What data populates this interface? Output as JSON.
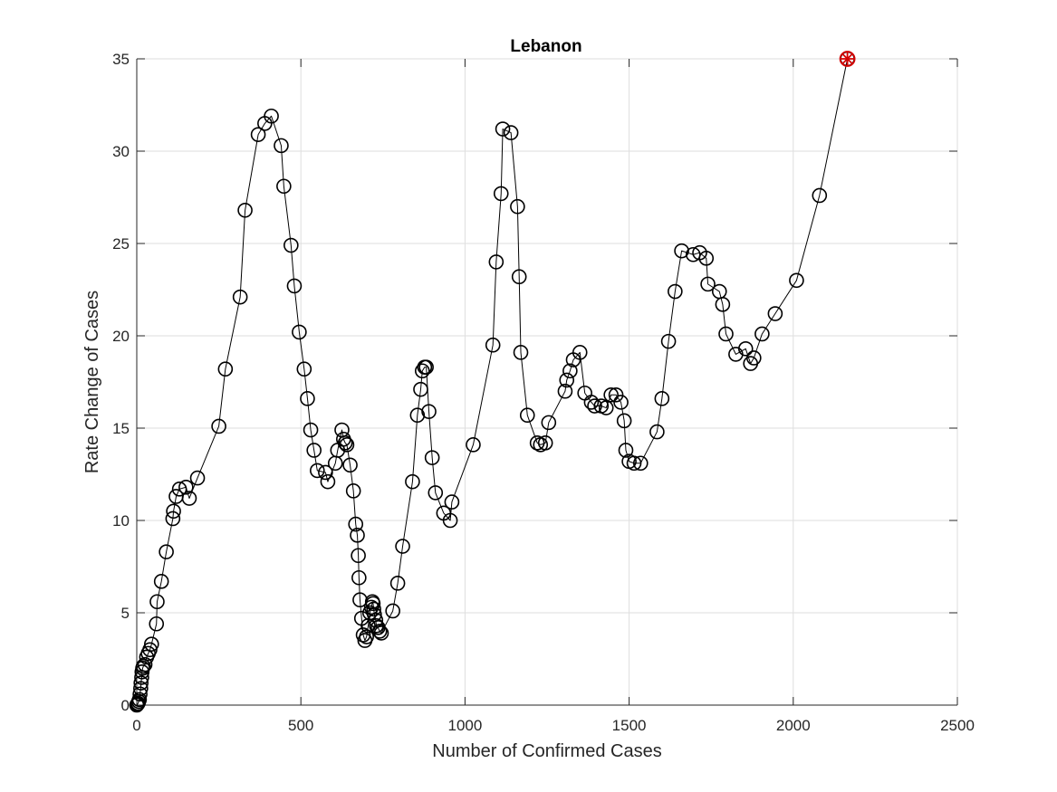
{
  "chart_data": {
    "type": "line",
    "title": "Lebanon",
    "xlabel": "Number of Confirmed Cases",
    "ylabel": "Rate Change of Cases",
    "xlim": [
      0,
      2500
    ],
    "ylim": [
      0,
      35
    ],
    "xticks": [
      "0",
      "500",
      "1000",
      "1500",
      "2000",
      "2500"
    ],
    "yticks": [
      "0",
      "5",
      "10",
      "15",
      "20",
      "25",
      "30",
      "35"
    ],
    "grid": true,
    "series": [
      {
        "line_color": "#000000",
        "marker": "circle",
        "x": [
          0,
          2,
          4,
          6,
          8,
          10,
          12,
          13,
          15,
          16,
          18,
          20,
          25,
          30,
          35,
          40,
          45,
          60,
          62,
          75,
          90,
          110,
          112,
          120,
          130,
          150,
          160,
          185,
          250,
          270,
          315,
          330,
          370,
          390,
          410,
          440,
          448,
          470,
          480,
          495,
          510,
          520,
          530,
          540,
          550,
          575,
          582,
          605,
          612,
          625,
          630,
          635,
          640,
          650,
          660,
          667,
          672,
          675,
          677,
          680,
          685,
          690,
          695,
          700,
          705,
          710,
          715,
          718,
          720,
          722,
          724,
          728,
          730,
          735,
          740,
          745,
          780,
          795,
          810,
          840,
          855,
          865,
          870,
          877,
          882,
          890,
          900,
          910,
          935,
          955,
          960,
          1025,
          1085,
          1095,
          1110,
          1115,
          1140,
          1160,
          1165,
          1170,
          1190,
          1220,
          1230,
          1245,
          1255,
          1305,
          1310,
          1320,
          1330,
          1350,
          1365,
          1385,
          1395,
          1415,
          1430,
          1445,
          1460,
          1475,
          1485,
          1490,
          1500,
          1515,
          1535,
          1585,
          1600,
          1620,
          1640,
          1660,
          1695,
          1715,
          1735,
          1740,
          1775,
          1785,
          1795,
          1825,
          1855,
          1870,
          1880,
          1905,
          1945,
          2010,
          2080,
          2165
        ],
        "y": [
          0,
          0.05,
          0.1,
          0.2,
          0.3,
          0.6,
          0.9,
          1.2,
          1.5,
          1.8,
          2.0,
          2.1,
          2.2,
          2.6,
          2.8,
          3.0,
          3.3,
          4.4,
          5.6,
          6.7,
          8.3,
          10.1,
          10.5,
          11.3,
          11.7,
          11.8,
          11.2,
          12.3,
          15.1,
          18.2,
          22.1,
          26.8,
          30.9,
          31.5,
          31.9,
          30.3,
          28.1,
          24.9,
          22.7,
          20.2,
          18.2,
          16.6,
          14.9,
          13.8,
          12.7,
          12.6,
          12.1,
          13.1,
          13.8,
          14.9,
          14.4,
          14.2,
          14.1,
          13.0,
          11.6,
          9.8,
          9.2,
          8.1,
          6.9,
          5.7,
          4.7,
          3.8,
          3.5,
          3.7,
          4.3,
          5.0,
          5.3,
          5.6,
          5.5,
          5.2,
          4.9,
          4.6,
          4.3,
          4.2,
          4.0,
          3.9,
          5.1,
          6.6,
          8.6,
          12.1,
          15.7,
          17.1,
          18.1,
          18.3,
          18.3,
          15.9,
          13.4,
          11.5,
          10.4,
          10.0,
          11.0,
          14.1,
          19.5,
          24.0,
          27.7,
          31.2,
          31.0,
          27.0,
          23.2,
          19.1,
          15.7,
          14.2,
          14.1,
          14.2,
          15.3,
          17.0,
          17.6,
          18.1,
          18.7,
          19.1,
          16.9,
          16.4,
          16.2,
          16.2,
          16.1,
          16.8,
          16.8,
          16.4,
          15.4,
          13.8,
          13.2,
          13.1,
          13.1,
          14.8,
          16.6,
          19.7,
          22.4,
          24.6,
          24.4,
          24.5,
          24.2,
          22.8,
          22.4,
          21.7,
          20.1,
          19.0,
          19.3,
          18.5,
          18.8,
          20.1,
          21.2,
          23.0,
          27.6,
          35.0
        ]
      }
    ],
    "highlight_point": {
      "x": 2165,
      "y": 35.0,
      "color": "#d40000",
      "marker": "asterisk-in-circle"
    }
  }
}
